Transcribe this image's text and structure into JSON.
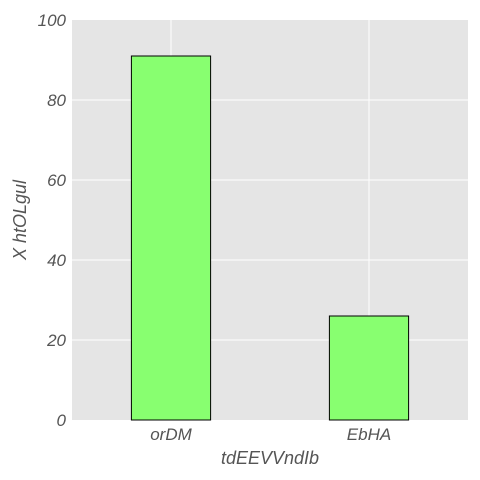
{
  "chart_data": {
    "type": "bar",
    "categories": [
      "orDM",
      "EbHA"
    ],
    "values": [
      91,
      26
    ],
    "xlabel": "tdEEVVndIb",
    "ylabel": "X htOLgul",
    "ylim": [
      0,
      100
    ],
    "yticks": [
      0,
      20,
      40,
      60,
      80,
      100
    ],
    "grid": true,
    "colors": {
      "bar_fill": "#88ff70",
      "bar_edge": "#000000",
      "plot_background": "#e5e5e5",
      "grid": "#ffffff",
      "text": "#555555"
    }
  }
}
